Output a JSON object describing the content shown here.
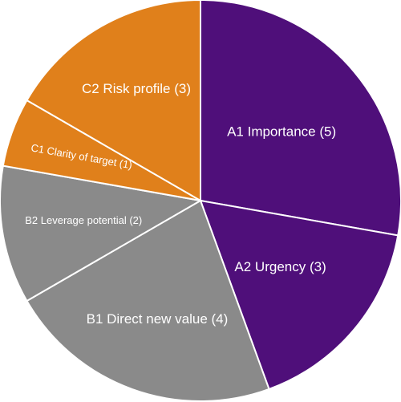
{
  "chart_data": {
    "type": "pie",
    "categories": [
      "A1 Importance (5)",
      "A2 Urgency (3)",
      "B1 Direct new value (4)",
      "B2 Leverage potential (2)",
      "C1 Clarity of target (1)",
      "C2 Risk profile (3)"
    ],
    "values": [
      5,
      3,
      4,
      2,
      1,
      3
    ],
    "colors": [
      "#4f0f7a",
      "#4f0f7a",
      "#8a8a8a",
      "#8a8a8a",
      "#e0801b",
      "#e0801b"
    ]
  }
}
